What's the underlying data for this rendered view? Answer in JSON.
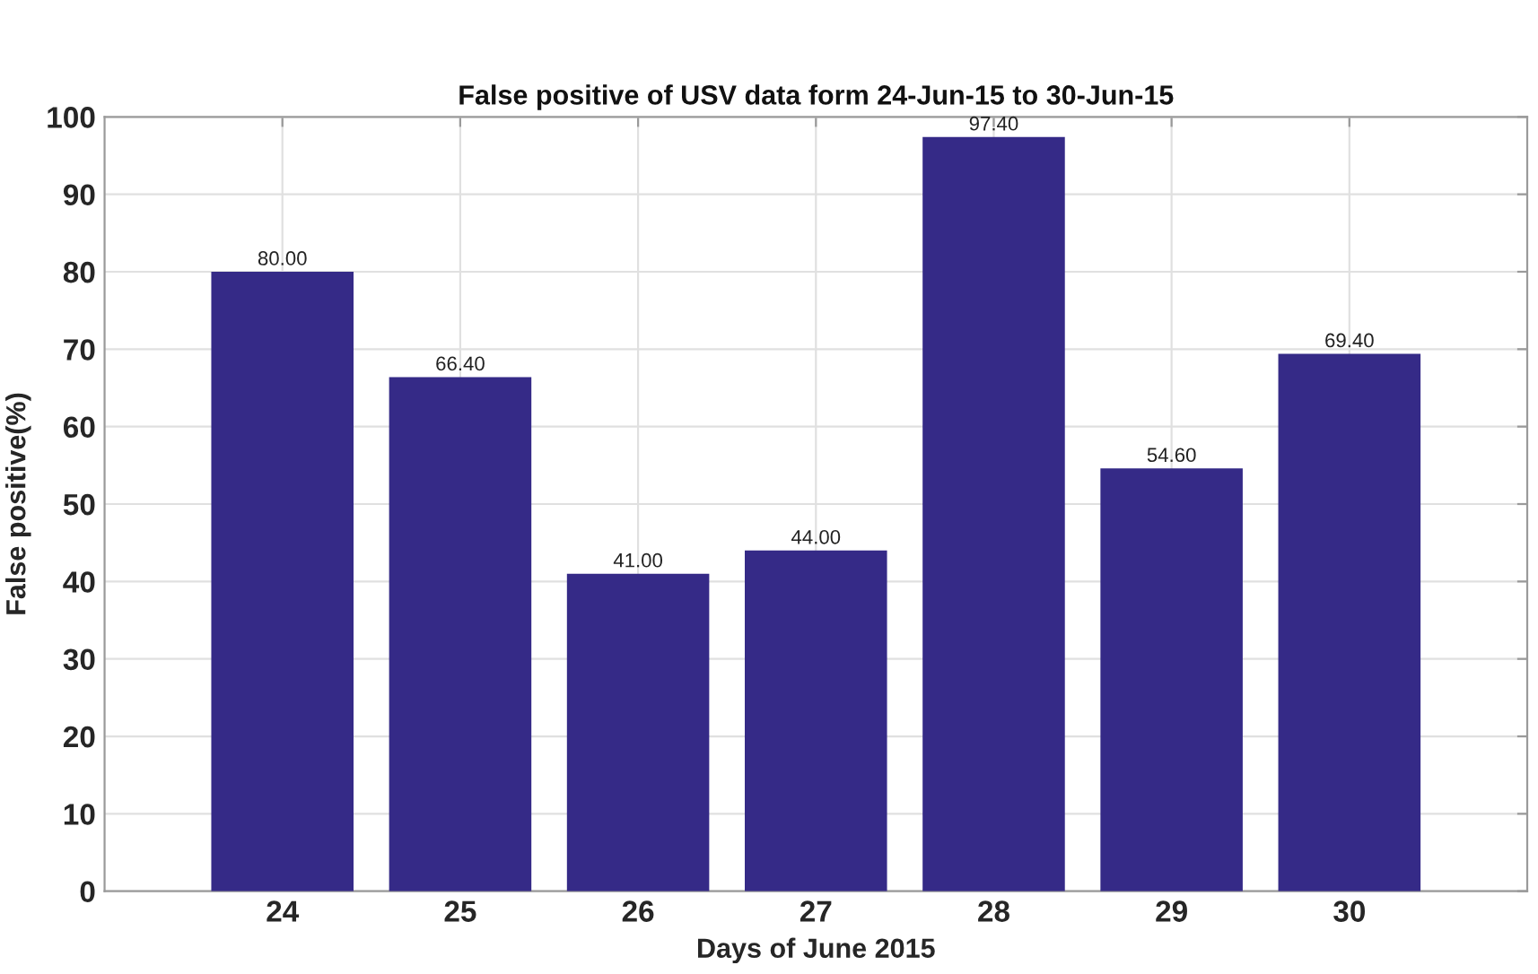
{
  "chart_data": {
    "type": "bar",
    "title": "False positive of USV data form 24-Jun-15 to 30-Jun-15",
    "xlabel": "Days of June 2015",
    "ylabel": "False positive(%)",
    "categories": [
      "24",
      "25",
      "26",
      "27",
      "28",
      "29",
      "30"
    ],
    "values": [
      80.0,
      66.4,
      41.0,
      44.0,
      97.4,
      54.6,
      69.4
    ],
    "value_labels": [
      "80.00",
      "66.40",
      "41.00",
      "44.00",
      "97.40",
      "54.60",
      "69.40"
    ],
    "color": "#352a87",
    "ylim": [
      0,
      100
    ],
    "yticks": [
      0,
      10,
      20,
      30,
      40,
      50,
      60,
      70,
      80,
      90,
      100
    ],
    "grid": true
  }
}
